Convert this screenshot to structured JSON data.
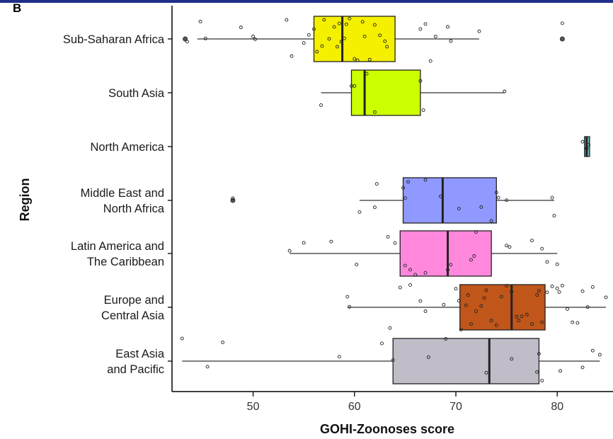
{
  "panel_label": "B",
  "chart_data": {
    "type": "box",
    "xlabel": "GOHI-Zoonoses score",
    "ylabel": "Region",
    "xlim": [
      42,
      85.5
    ],
    "xticks": [
      50,
      60,
      70,
      80
    ],
    "grid": false,
    "legend": "none",
    "categories": [
      {
        "label": [
          "Sub-Saharan Africa"
        ],
        "color": "#f5f000",
        "q1": 56,
        "median": 58.8,
        "q3": 64,
        "wlow": 44.5,
        "whigh": 72.3,
        "outliers": [
          43.3,
          80.5
        ],
        "points": [
          45.3,
          43.5,
          44.8,
          48.8,
          50,
          50.2,
          53.3,
          53.8,
          55,
          55.5,
          56,
          56.3,
          56.8,
          57,
          57.5,
          58,
          58.3,
          58.5,
          58.7,
          59,
          59.2,
          59.5,
          60,
          60.3,
          60.8,
          61,
          61.5,
          62,
          62.5,
          63,
          63.2,
          66.5,
          67,
          67.5,
          68,
          69.2,
          69.5,
          72.3,
          80.5
        ]
      },
      {
        "label": [
          "South Asia"
        ],
        "color": "#ccff00",
        "q1": 59.7,
        "median": 61,
        "q3": 66.5,
        "wlow": 56.7,
        "whigh": 74.8,
        "outliers": [],
        "points": [
          56.7,
          59.7,
          60,
          61.2,
          62,
          66.5,
          66.8,
          74.8
        ]
      },
      {
        "label": [
          "North America"
        ],
        "color": "#66bbbb",
        "q1": 82.6,
        "median": 82.9,
        "q3": 83.1,
        "wlow": 82.6,
        "whigh": 83.1,
        "outliers": [],
        "points": [
          82.5,
          82.9,
          83.1
        ]
      },
      {
        "label": [
          "Middle East and",
          "North Africa"
        ],
        "color": "#9099ff",
        "q1": 64.8,
        "median": 68.7,
        "q3": 74,
        "wlow": 60.5,
        "whigh": 79.7,
        "outliers": [
          48
        ],
        "points": [
          60.5,
          62,
          62.2,
          64.8,
          65,
          65.3,
          67,
          68.5,
          70.3,
          72.5,
          73.5,
          74,
          74.2,
          75,
          79.5,
          79.7,
          48
        ]
      },
      {
        "label": [
          "Latin America and",
          "The Caribbean"
        ],
        "color": "#ff88dd",
        "q1": 64.5,
        "median": 69.2,
        "q3": 73.5,
        "wlow": 53.6,
        "whigh": 80,
        "outliers": [],
        "points": [
          53.6,
          55,
          57.7,
          60.2,
          63.3,
          64,
          65,
          65.5,
          66,
          67,
          69.2,
          69.5,
          71.5,
          71.8,
          72,
          75,
          75.3,
          77.5,
          78.5,
          79,
          80
        ]
      },
      {
        "label": [
          "Europe and",
          "Central Asia"
        ],
        "color": "#c0561a",
        "q1": 70.4,
        "median": 75.5,
        "q3": 78.8,
        "wlow": 59.3,
        "whigh": 84.8,
        "outliers": [],
        "points": [
          59.3,
          63.5,
          65.5,
          66.5,
          67,
          68.8,
          70,
          70.5,
          71,
          71.5,
          72,
          72.5,
          73,
          73.5,
          74,
          74.5,
          75,
          75.5,
          76,
          76.5,
          77,
          77.5,
          78,
          78.5,
          79,
          79.5,
          80,
          80.5,
          81,
          81.5,
          82,
          82.5,
          83,
          83.5,
          84.8,
          59.5,
          64.5,
          70.3,
          71.2,
          72.8,
          76.2,
          78.2,
          80.2
        ]
      },
      {
        "label": [
          "East Asia",
          "and Pacific"
        ],
        "color": "#c0bcc8",
        "q1": 63.8,
        "median": 73.3,
        "q3": 78.2,
        "wlow": 43,
        "whigh": 84.2,
        "outliers": [],
        "points": [
          43,
          45.5,
          47,
          58.5,
          62.7,
          63.8,
          67.3,
          69,
          73,
          75.5,
          78,
          78.2,
          78.5,
          80.3,
          82.5,
          83.5,
          84.2
        ]
      }
    ]
  }
}
